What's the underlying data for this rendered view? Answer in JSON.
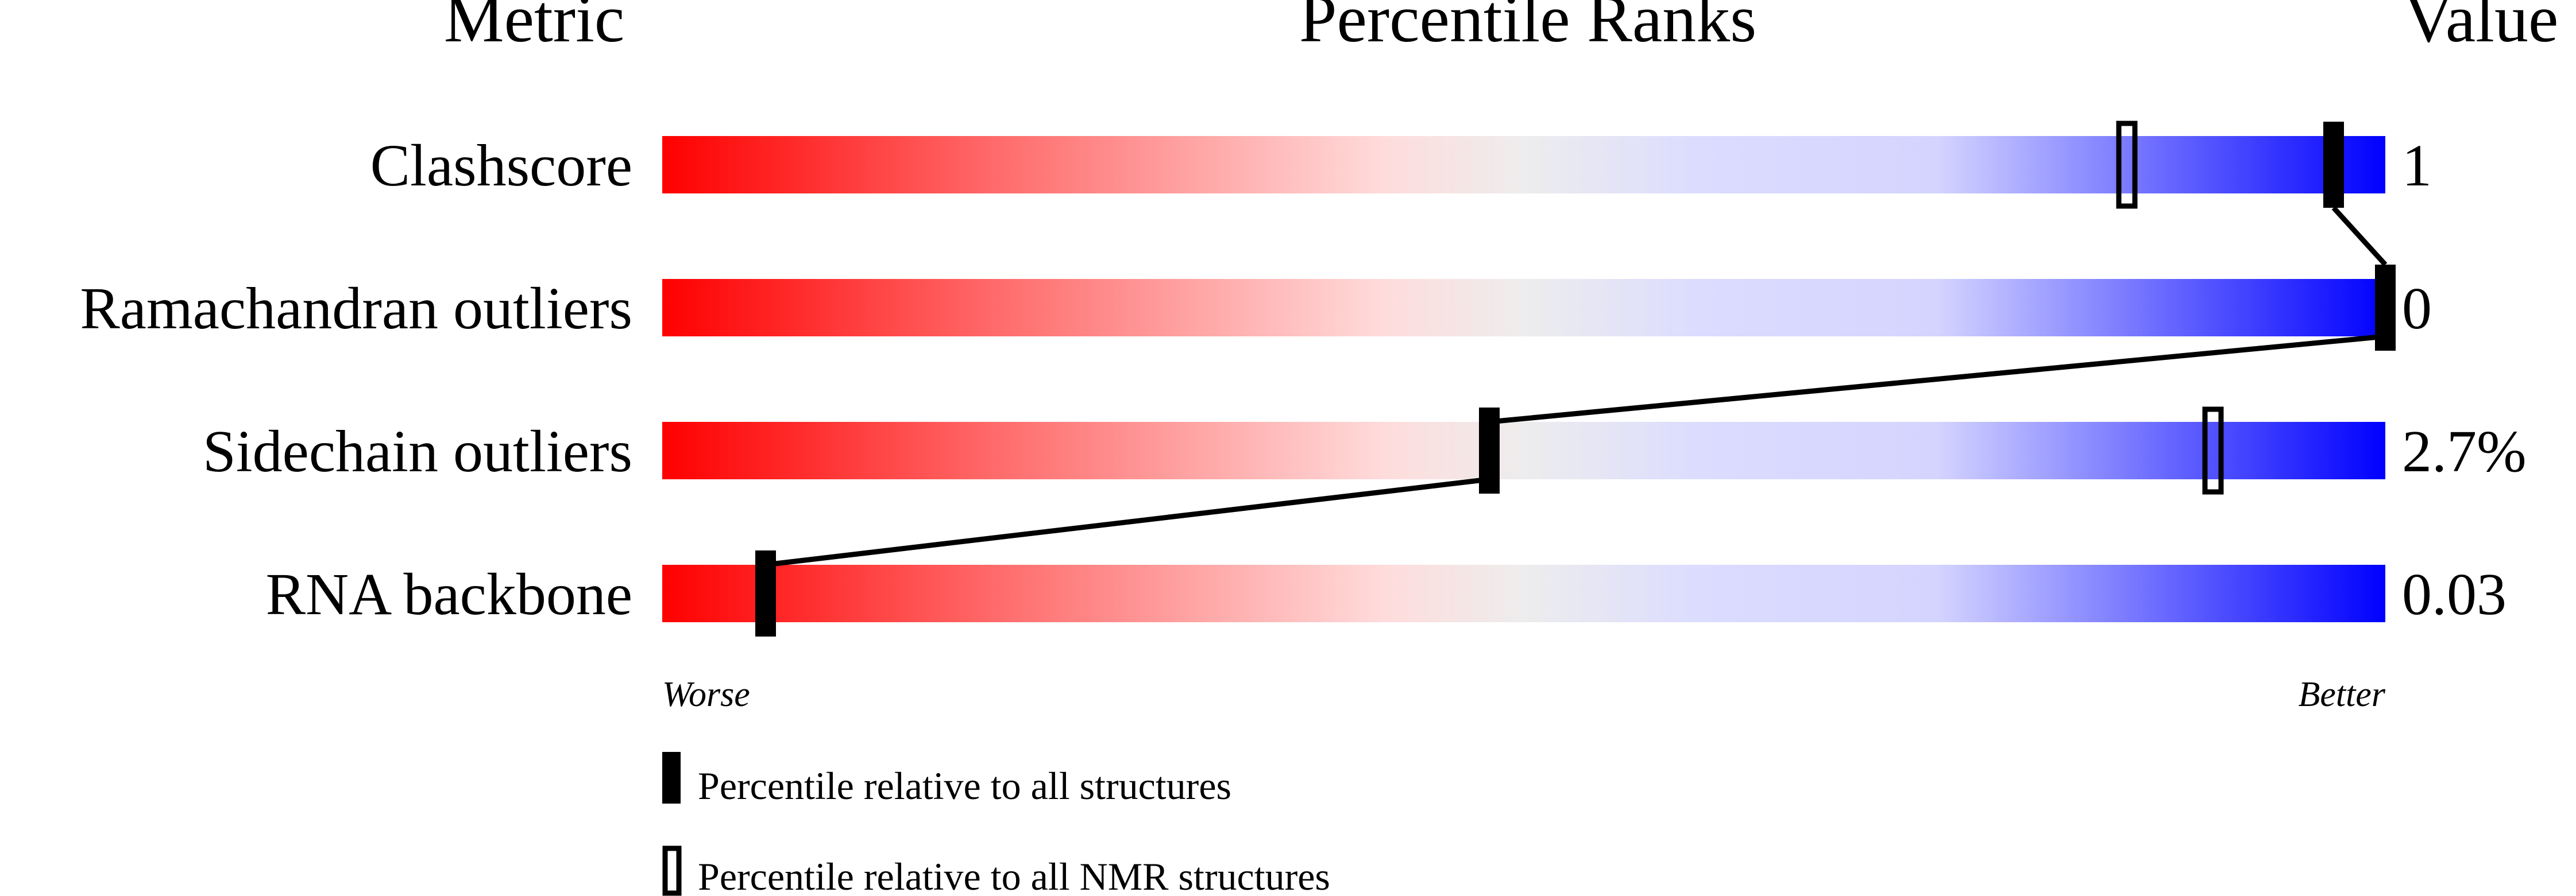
{
  "chart_data": {
    "type": "percentile-slider",
    "headers": {
      "metric": "Metric",
      "ranks": "Percentile Ranks",
      "value": "Value"
    },
    "xlim": [
      0,
      100
    ],
    "axis_labels": {
      "left": "Worse",
      "right": "Better"
    },
    "gradient": {
      "worse": "#ff0000",
      "middle": "#eeeeee",
      "better": "#0000ff"
    },
    "rows": [
      {
        "metric": "Clashscore",
        "value": "1",
        "percentile_all": 97,
        "percentile_nmr": 85
      },
      {
        "metric": "Ramachandran outliers",
        "value": "0",
        "percentile_all": 100,
        "percentile_nmr": null
      },
      {
        "metric": "Sidechain outliers",
        "value": "2.7%",
        "percentile_all": 48,
        "percentile_nmr": 90
      },
      {
        "metric": "RNA backbone",
        "value": "0.03",
        "percentile_all": 6,
        "percentile_nmr": null
      }
    ],
    "legend": [
      {
        "marker": "filled",
        "label": "Percentile relative to all structures"
      },
      {
        "marker": "open",
        "label": "Percentile relative to all NMR structures"
      }
    ]
  }
}
